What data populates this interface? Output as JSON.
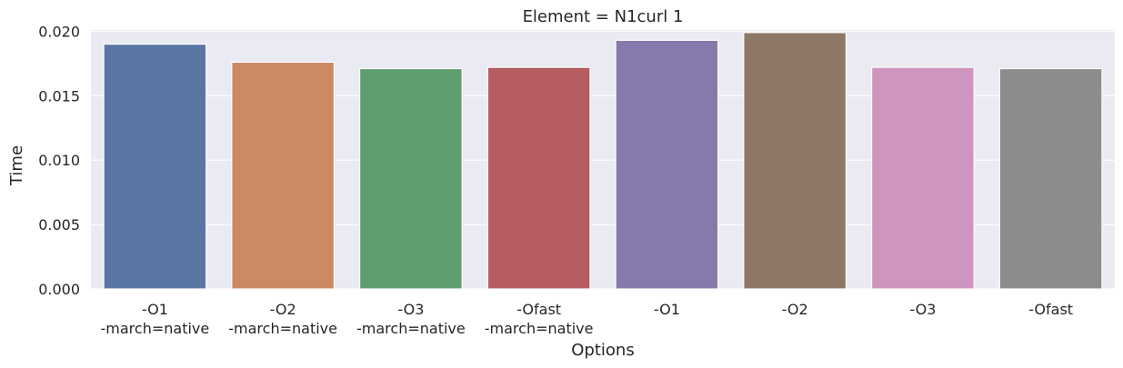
{
  "chart_data": {
    "type": "bar",
    "title": "Element = N1curl 1",
    "xlabel": "Options",
    "ylabel": "Time",
    "categories": [
      "-O1\n-march=native",
      "-O2\n-march=native",
      "-O3\n-march=native",
      "-Ofast\n-march=native",
      "-O1",
      "-O2",
      "-O3",
      "-Ofast"
    ],
    "values": [
      0.019,
      0.0176,
      0.0171,
      0.0172,
      0.0193,
      0.0199,
      0.0172,
      0.0171
    ],
    "colors": [
      "#5875a4",
      "#cc8963",
      "#5f9e6e",
      "#b55d60",
      "#857aab",
      "#8d7866",
      "#d095bf",
      "#8c8c8c"
    ],
    "ylim": [
      0,
      0.0201
    ],
    "yticks": [
      "0.000",
      "0.005",
      "0.010",
      "0.015",
      "0.020"
    ],
    "ytick_values": [
      0,
      0.005,
      0.01,
      0.015,
      0.02
    ],
    "grid": true,
    "background": "#eaeaf2"
  }
}
